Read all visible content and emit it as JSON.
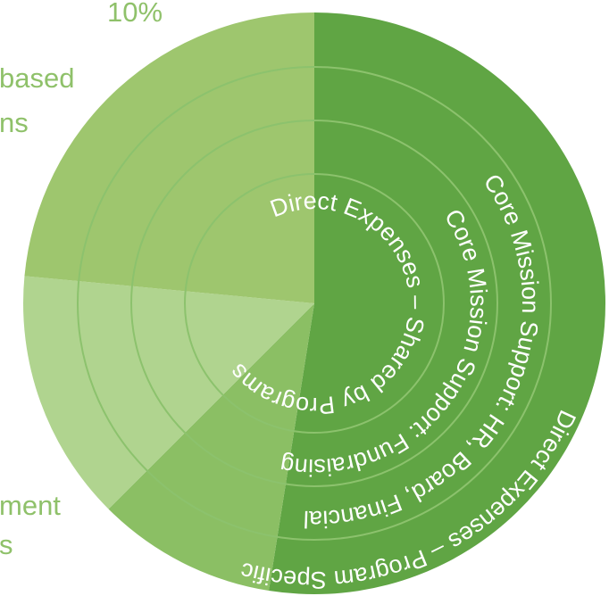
{
  "chart_data": {
    "type": "pie",
    "series": [
      {
        "values": [
          52.5,
          10,
          14,
          23.5
        ]
      }
    ],
    "slice_colors": [
      "#60a544",
      "#8bbf64",
      "#b0d48f",
      "#9ec66e"
    ],
    "ring_text_color": "#ffffff",
    "label_color": "#8fc16a",
    "ring_line_color": "#8cc26d",
    "ring_labels": [
      "Direct Expenses – Program Specific",
      "Core Mission Support: HR, Board, Financial",
      "Core Mission Support: Fundraising",
      "Direct Expenses – Shared by Programs"
    ],
    "outside_labels": {
      "top_pct": "10%",
      "left_upper_line1": "based",
      "left_upper_line2": "ns",
      "left_lower_line1": "ment",
      "left_lower_line2": "s"
    }
  }
}
